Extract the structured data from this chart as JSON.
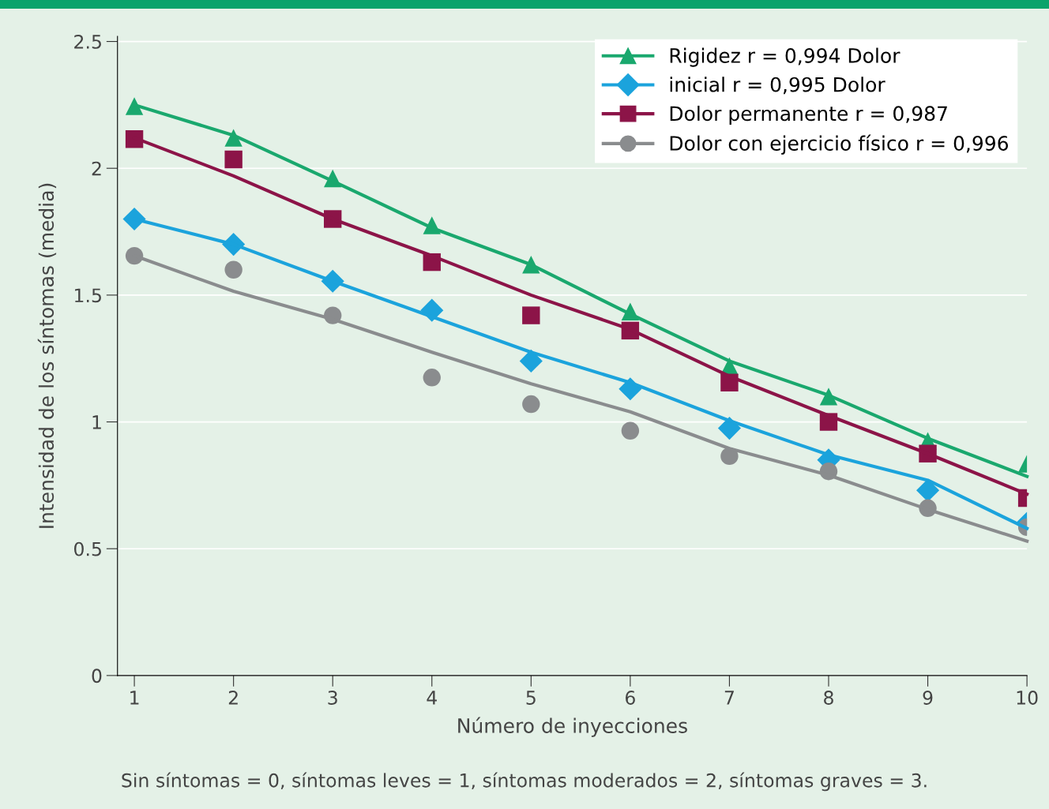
{
  "chart_data": {
    "type": "scatter",
    "xlabel": "Número de inyecciones",
    "ylabel": "Intensidad de los síntomas (media)",
    "annotations": [
      "Sin síntomas = 0, síntomas leves = 1, síntomas moderados = 2, síntomas graves = 3."
    ],
    "x": [
      1,
      2,
      3,
      4,
      5,
      6,
      7,
      8,
      9,
      10
    ],
    "xlim": [
      0.83,
      10
    ],
    "xticks": [
      1,
      2,
      3,
      4,
      5,
      6,
      7,
      8,
      9,
      10
    ],
    "ylim": [
      0,
      2.52
    ],
    "yticks": [
      0,
      0.5,
      1,
      1.5,
      2,
      2.5
    ],
    "grid": "y",
    "legend": "top right",
    "series": [
      {
        "name": "Rigidez r = 0,994 Dolor",
        "marker": "triangle",
        "color": "#1aa86e",
        "values": [
          2.245,
          2.12,
          1.96,
          1.775,
          1.62,
          1.435,
          1.22,
          1.1,
          0.925,
          0.835
        ]
      },
      {
        "name": "inicial r = 0,995 Dolor",
        "marker": "diamond",
        "color": "#1ba3dc",
        "values": [
          1.8,
          1.7,
          1.555,
          1.44,
          1.24,
          1.13,
          0.975,
          0.85,
          0.73,
          0.6
        ]
      },
      {
        "name": "Dolor permanente r = 0,987",
        "marker": "square",
        "color": "#8c1448",
        "values": [
          2.115,
          2.035,
          1.8,
          1.63,
          1.42,
          1.36,
          1.155,
          1.0,
          0.875,
          0.7
        ]
      },
      {
        "name": "Dolor con ejercicio físico r = 0,996",
        "marker": "circle",
        "color": "#8a8c8e",
        "values": [
          1.655,
          1.6,
          1.42,
          1.175,
          1.07,
          0.965,
          0.865,
          0.805,
          0.66,
          0.585
        ]
      },
      {
        "type": "line",
        "line_style": "solid",
        "color": "#1aa86e",
        "x": [
          1,
          2,
          3,
          4,
          5,
          6,
          7,
          8,
          9,
          10
        ],
        "values": [
          2.25,
          2.13,
          1.95,
          1.765,
          1.62,
          1.425,
          1.24,
          1.105,
          0.935,
          0.785
        ]
      },
      {
        "type": "line",
        "line_style": "solid",
        "color": "#1ba3dc",
        "x": [
          1,
          2,
          3,
          4,
          5,
          6,
          7,
          8,
          9,
          10
        ],
        "values": [
          1.8,
          1.7,
          1.555,
          1.415,
          1.275,
          1.155,
          1.005,
          0.87,
          0.77,
          0.58
        ]
      },
      {
        "type": "line",
        "line_style": "solid",
        "color": "#8c1448",
        "x": [
          1,
          2,
          3,
          4,
          5,
          6,
          7,
          8,
          9,
          10
        ],
        "values": [
          2.12,
          1.97,
          1.8,
          1.655,
          1.5,
          1.365,
          1.18,
          1.025,
          0.875,
          0.715
        ]
      },
      {
        "type": "line",
        "line_style": "solid",
        "color": "#8a8c8e",
        "x": [
          1,
          2,
          3,
          4,
          5,
          6,
          7,
          8,
          9,
          10
        ],
        "values": [
          1.655,
          1.515,
          1.405,
          1.275,
          1.15,
          1.04,
          0.895,
          0.79,
          0.655,
          0.53
        ]
      }
    ]
  }
}
